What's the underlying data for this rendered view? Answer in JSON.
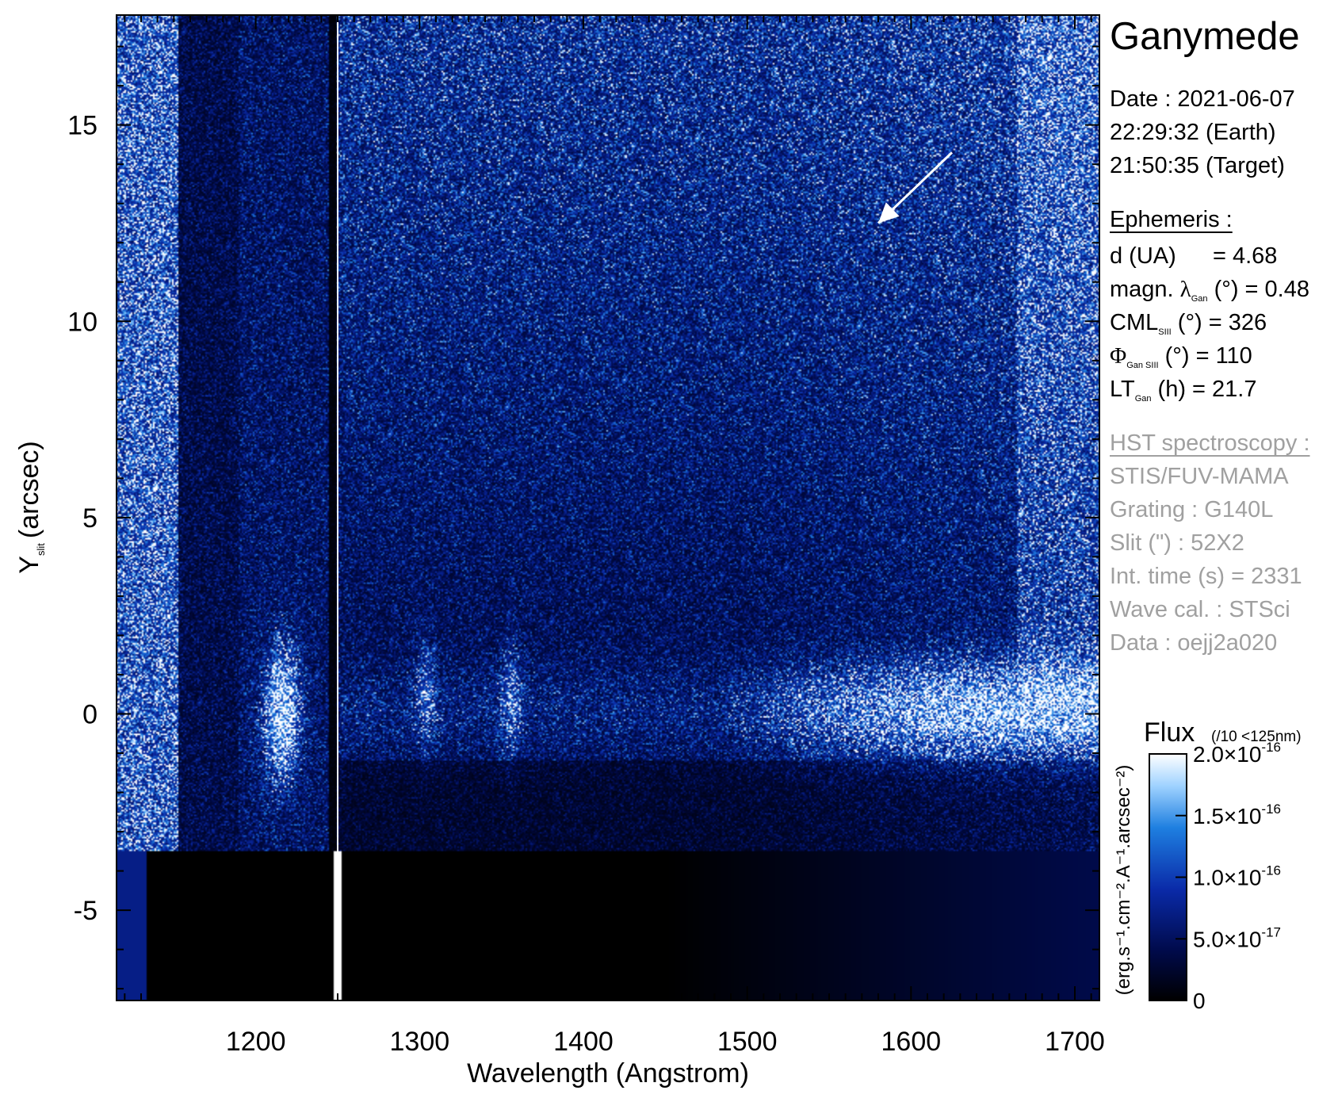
{
  "chart_data": {
    "type": "heatmap",
    "title": "",
    "xlabel": "Wavelength (Angstrom)",
    "ylabel_main": "Y",
    "ylabel_sub": "slit",
    "ylabel_unit": "(arcsec)",
    "xlim": [
      1115,
      1715
    ],
    "ylim": [
      -7.3,
      17.8
    ],
    "x_ticks": [
      1200,
      1300,
      1400,
      1500,
      1600,
      1700
    ],
    "y_ticks": [
      15,
      10,
      5,
      0,
      -5
    ],
    "colormap": [
      "#000000",
      "#000a4a",
      "#0a2aa8",
      "#1e7fe0",
      "#9fd2ff",
      "#ffffff"
    ],
    "features": [
      {
        "name": "Lyman-alpha geocoronal line",
        "x_center": 1216,
        "y_center": 0,
        "radius": 1.5
      },
      {
        "name": "OI 1304 emission",
        "x_center": 1304,
        "y_center": 0.5
      },
      {
        "name": "OI 1356 emission",
        "x_center": 1356,
        "y_center": 0.6
      },
      {
        "name": "Ganymede reflected continuum",
        "x_range": [
          1500,
          1715
        ],
        "y_center": 0
      }
    ],
    "arrow": {
      "from": [
        1625,
        14.3
      ],
      "to": [
        1580,
        12.5
      ]
    },
    "colorbar": {
      "label": "Flux",
      "note": "(/10 <125nm)",
      "unit": "(erg.s⁻¹.cm⁻².A⁻¹.arcsec⁻²)",
      "min": 0,
      "max": 2e-16,
      "ticks": [
        {
          "value": 0,
          "mant": "0",
          "exp": ""
        },
        {
          "value": 5e-17,
          "mant": "5.0×10",
          "exp": "-17"
        },
        {
          "value": 1e-16,
          "mant": "1.0×10",
          "exp": "-16"
        },
        {
          "value": 1.5e-16,
          "mant": "1.5×10",
          "exp": "-16"
        },
        {
          "value": 2e-16,
          "mant": "2.0×10",
          "exp": "-16"
        }
      ]
    }
  },
  "info": {
    "title": "Ganymede",
    "date_line": "Date : 2021-06-07",
    "time_earth": "22:29:32 (Earth)",
    "time_target": "21:50:35 (Target)",
    "ephemeris_header": "Ephemeris :",
    "eph_d_label": "d (UA)",
    "eph_d_value": "= 4.68",
    "eph_lat_pre": "magn. ",
    "eph_lat_sym": "λ",
    "eph_lat_sub": "Gan",
    "eph_lat_post": " (°)  = 0.48",
    "eph_cml_pre": "CML",
    "eph_cml_sub": "SIII",
    "eph_cml_post": " (°) = 326",
    "eph_phi_sym": "Φ",
    "eph_phi_sub": "Gan SIII",
    "eph_phi_post": " (°) = 110",
    "eph_lt_pre": "LT",
    "eph_lt_sub": "Gan",
    "eph_lt_post": " (h) = 21.7",
    "hst_header": "HST spectroscopy :",
    "hst_instrument": "STIS/FUV-MAMA",
    "hst_grating": "Grating : G140L",
    "hst_slit": "Slit (\") : 52X2",
    "hst_inttime": "Int. time (s) = 2331",
    "hst_wavecal": "Wave cal. : STSci",
    "hst_data": "Data : oejj2a020"
  }
}
